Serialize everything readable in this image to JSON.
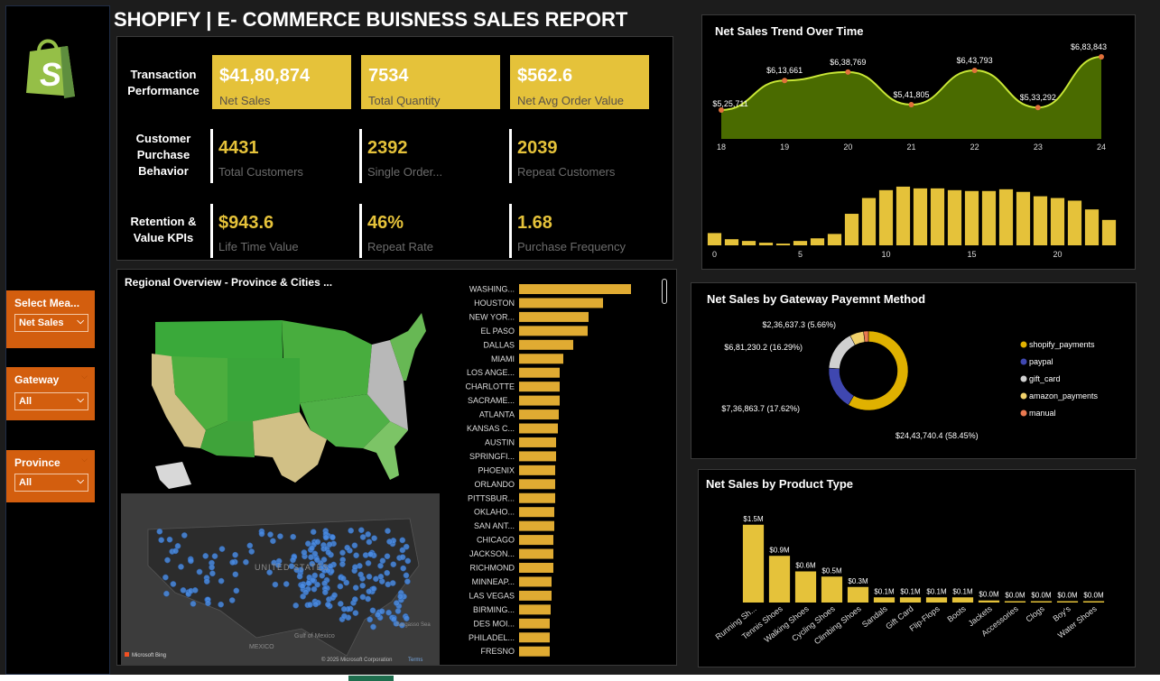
{
  "title": "SHOPIFY | E- COMMERCE BUISNESS SALES REPORT",
  "sidebar": {
    "logo": "shopify-logo",
    "slicers": [
      {
        "label": "Select Mea...",
        "value": "Net Sales"
      },
      {
        "label": "Gateway",
        "value": "All"
      },
      {
        "label": "Province",
        "value": "All"
      }
    ]
  },
  "kpi": {
    "rows": [
      {
        "label_lines": [
          "Transaction",
          "Performance"
        ],
        "cards": [
          {
            "value": "$41,80,874",
            "label": "Net Sales"
          },
          {
            "value": "7534",
            "label": "Total Quantity"
          },
          {
            "value": "$562.6",
            "label": "Net Avg Order Value"
          }
        ]
      },
      {
        "label_lines": [
          "Customer",
          "Purchase",
          "Behavior"
        ],
        "cards": [
          {
            "value": "4431",
            "label": "Total Customers"
          },
          {
            "value": "2392",
            "label": "Single Order..."
          },
          {
            "value": "2039",
            "label": "Repeat Customers"
          }
        ]
      },
      {
        "label_lines": [
          "Retention &",
          "Value KPIs"
        ],
        "cards": [
          {
            "value": "$943.6",
            "label": "Life Time Value"
          },
          {
            "value": "46%",
            "label": "Repeat Rate"
          },
          {
            "value": "1.68",
            "label": "Purchase Frequency"
          }
        ]
      }
    ]
  },
  "colors": {
    "accent": "#e5c23a",
    "orange": "#d35e0e",
    "area_fill": "#4a6b00",
    "area_line": "#c8e636"
  },
  "regional": {
    "title": "Regional Overview - Province & Cities ...",
    "map_labels": {
      "country": "UNITED STATES",
      "gulf": "Gulf of\nMexico",
      "mexico": "MEXICO",
      "sargasso": "Sargasso Sea",
      "bing": "Microsoft Bing",
      "copyright": "© 2025 Microsoft Corporation",
      "terms": "Terms"
    }
  },
  "chart_data": [
    {
      "id": "trend",
      "type": "area",
      "title": "Net Sales Trend Over Time",
      "x": [
        18,
        19,
        20,
        21,
        22,
        23,
        24
      ],
      "values": [
        525711,
        613661,
        638769,
        541805,
        643793,
        533292,
        683843
      ],
      "labels": [
        "$5,25,711",
        "$6,13,661",
        "$6,38,769",
        "$5,41,805",
        "$6,43,793",
        "$5,33,292",
        "$6,83,843"
      ],
      "ylim": [
        440000,
        700000
      ]
    },
    {
      "id": "hourly",
      "type": "bar",
      "x": [
        0,
        1,
        2,
        3,
        4,
        5,
        6,
        7,
        8,
        9,
        10,
        11,
        12,
        13,
        14,
        15,
        16,
        17,
        18,
        19,
        20,
        21,
        22,
        23
      ],
      "values": [
        14,
        7,
        5,
        3,
        2,
        5,
        8,
        13,
        36,
        54,
        63,
        67,
        65,
        65,
        63,
        62,
        62,
        64,
        61,
        56,
        54,
        51,
        41,
        29
      ],
      "ticks": [
        0,
        5,
        10,
        15,
        20
      ],
      "ylim": [
        0,
        70
      ]
    },
    {
      "id": "gateway",
      "type": "pie",
      "title": "Net Sales by Gateway Payemnt Method",
      "slices": [
        {
          "name": "shopify_payments",
          "value": 2443740.4,
          "label": "$24,43,740.4 (58.45%)",
          "color": "#e0b100"
        },
        {
          "name": "paypal",
          "value": 736863.7,
          "label": "$7,36,863.7 (17.62%)",
          "color": "#3f47b0"
        },
        {
          "name": "gift_card",
          "value": 681230.2,
          "label": "$6,81,230.2 (16.29%)",
          "color": "#d0d0d0"
        },
        {
          "name": "amazon_payments",
          "value": 236637.3,
          "label": "$2,36,637.3 (5.66%)",
          "color": "#f0d16b"
        },
        {
          "name": "manual",
          "value": 82402,
          "label": "",
          "color": "#e97950"
        }
      ]
    },
    {
      "id": "product",
      "type": "bar",
      "title": "Net Sales by Product Type",
      "categories": [
        "Running Sh...",
        "Tennis Shoes",
        "Walking Shoes",
        "Cycling Shoes",
        "Climbing Shoes",
        "Sandals",
        "Gift Card",
        "Flip-Flops",
        "Boots",
        "Jackets",
        "Accessories",
        "Clogs",
        "Boy's",
        "Water Shoes"
      ],
      "values": [
        1.5,
        0.9,
        0.6,
        0.5,
        0.3,
        0.1,
        0.1,
        0.1,
        0.1,
        0.04,
        0.02,
        0.02,
        0.02,
        0.02
      ],
      "labels": [
        "$1.5M",
        "$0.9M",
        "$0.6M",
        "$0.5M",
        "$0.3M",
        "$0.1M",
        "$0.1M",
        "$0.1M",
        "$0.1M",
        "$0.0M",
        "$0.0M",
        "$0.0M",
        "$0.0M",
        "$0.0M"
      ],
      "ylim": [
        0,
        1.6
      ]
    },
    {
      "id": "cities",
      "type": "bar",
      "orientation": "horizontal",
      "categories": [
        "WASHING...",
        "HOUSTON",
        "NEW YOR...",
        "EL PASO",
        "DALLAS",
        "MIAMI",
        "LOS ANGE...",
        "CHARLOTTE",
        "SACRAME...",
        "ATLANTA",
        "KANSAS C...",
        "AUSTIN",
        "SPRINGFI...",
        "PHOENIX",
        "ORLANDO",
        "PITTSBUR...",
        "OKLAHO...",
        "SAN ANT...",
        "CHICAGO",
        "JACKSON...",
        "RICHMOND",
        "MINNEAP...",
        "LAS VEGAS",
        "BIRMING...",
        "DES MOI...",
        "PHILADEL...",
        "FRESNO"
      ],
      "values": [
        124,
        93,
        77,
        76,
        60,
        49,
        45,
        45,
        45,
        44,
        43,
        41,
        41,
        40,
        40,
        40,
        39,
        39,
        38,
        38,
        38,
        36,
        36,
        35,
        34,
        34,
        34
      ],
      "xlim": [
        0,
        130
      ]
    }
  ]
}
